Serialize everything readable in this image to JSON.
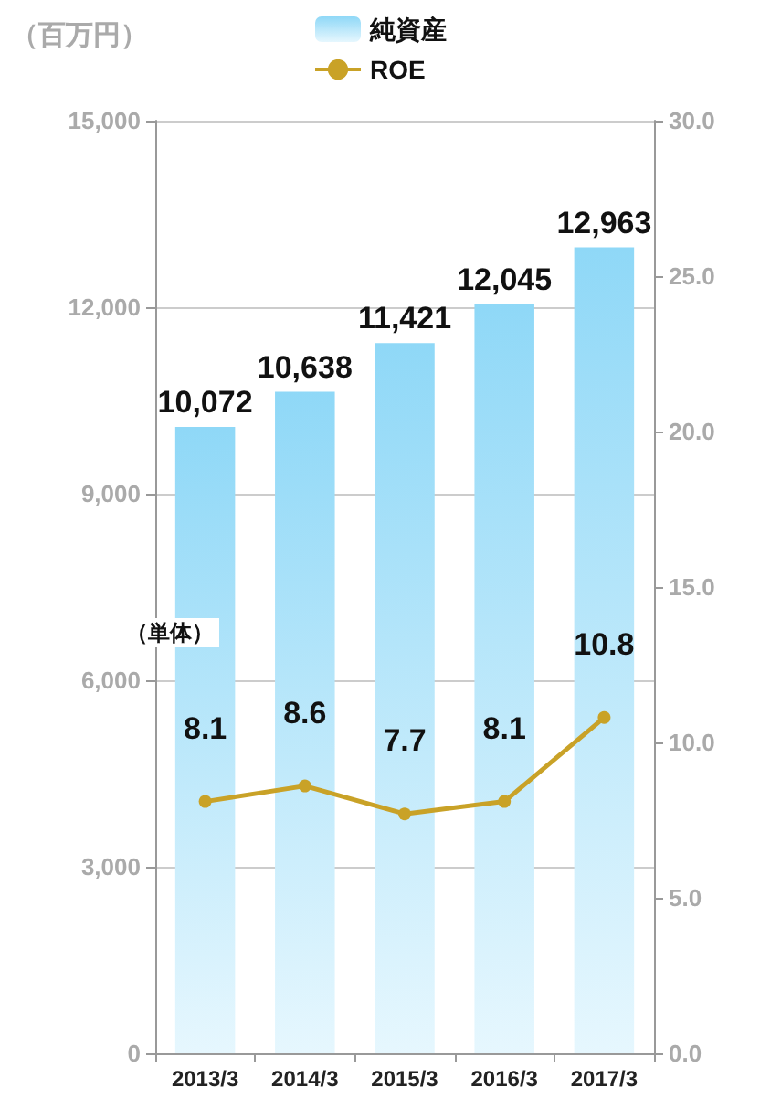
{
  "chart_data": {
    "type": "bar",
    "ylabel": "（百万円）",
    "annotations": [
      "（単体）"
    ],
    "categories": [
      "2013/3",
      "2014/3",
      "2015/3",
      "2016/3",
      "2017/3"
    ],
    "series": [
      {
        "name": "純資産",
        "color": "#8fd8f7",
        "values": [
          10072,
          10638,
          11421,
          12045,
          12963
        ],
        "value_labels": [
          "10,072",
          "10,638",
          "11,421",
          "12,045",
          "12,963"
        ]
      },
      {
        "name": "ROE",
        "type": "line",
        "axis": "y2",
        "color": "#c9a227",
        "values": [
          8.1,
          8.6,
          7.7,
          8.1,
          10.8
        ],
        "value_labels": [
          "8.1",
          "8.6",
          "7.7",
          "8.1",
          "10.8"
        ]
      }
    ],
    "ylim": [
      0,
      15000
    ],
    "yticks": [
      {
        "value": 0,
        "label": "0"
      },
      {
        "value": 3000,
        "label": "3,000"
      },
      {
        "value": 6000,
        "label": "6,000"
      },
      {
        "value": 9000,
        "label": "9,000"
      },
      {
        "value": 12000,
        "label": "12,000"
      },
      {
        "value": 15000,
        "label": "15,000"
      }
    ],
    "y2lim": [
      0,
      30
    ],
    "y2ticks": [
      {
        "value": 0,
        "label": "0.0"
      },
      {
        "value": 5,
        "label": "5.0"
      },
      {
        "value": 10,
        "label": "10.0"
      },
      {
        "value": 15,
        "label": "15.0"
      },
      {
        "value": 20,
        "label": "20.0"
      },
      {
        "value": 25,
        "label": "25.0"
      },
      {
        "value": 30,
        "label": "30.0"
      }
    ],
    "grid": "y",
    "legend": "top",
    "marker": "circle"
  }
}
